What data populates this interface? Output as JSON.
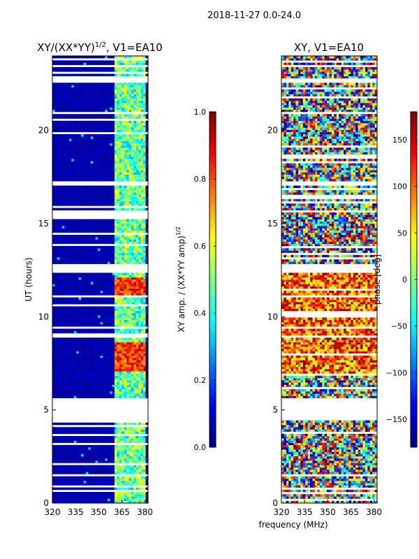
{
  "suptitle": "2018-11-27 0.0-24.0",
  "shared_xlabel": "frequency (MHz)",
  "colors": {
    "jet": [
      "#00007f",
      "#0000ff",
      "#007fff",
      "#00ffff",
      "#7fff7f",
      "#ffff00",
      "#ff7f00",
      "#ff0000",
      "#7f0000"
    ]
  },
  "chart_data": [
    {
      "type": "heatmap",
      "title": "XY/(XX*YY)^{1/2}, V1=EA10",
      "title_main": "XY/(XX*YY)",
      "title_exp": "1/2",
      "title_tail": ", V1=EA10",
      "xlabel": "frequency (MHz)",
      "ylabel": "UT (hours)",
      "xlim": [
        320,
        382
      ],
      "ylim": [
        0,
        24
      ],
      "xticks": [
        "320",
        "335",
        "350",
        "365",
        "380"
      ],
      "xtick_values": [
        320,
        335,
        350,
        365,
        380
      ],
      "yticks": [
        "0",
        "5",
        "10",
        "15",
        "20"
      ],
      "ytick_values": [
        0,
        5,
        10,
        15,
        20
      ],
      "colorbar": {
        "label": "XY amp. / (XX*YY amp)^{1/2}",
        "label_main": "XY amp. / (XX*YY amp)",
        "label_exp": "1/2",
        "range": [
          0.0,
          1.0
        ],
        "ticks": [
          "0.0",
          "0.2",
          "0.4",
          "0.6",
          "0.8",
          "1.0"
        ],
        "tick_values": [
          0.0,
          0.2,
          0.4,
          0.6,
          0.8,
          1.0
        ]
      },
      "description": "amplitude near 0 (dark blue) below ~360 MHz; elevated 0.3-0.9 in 360-380 MHz band; peaks ~0.9 near UT 7-8.5 and 11-12",
      "blank_ut_intervals": [
        [
          4.4,
          5.6
        ],
        [
          12.3,
          12.8
        ],
        [
          8.8,
          9.0
        ],
        [
          22.5,
          22.8
        ],
        [
          17.0,
          17.2
        ]
      ]
    },
    {
      "type": "heatmap",
      "title": "XY, V1=EA10",
      "xlabel": "frequency (MHz)",
      "ylabel": "",
      "xlim": [
        320,
        382
      ],
      "ylim": [
        0,
        24
      ],
      "xticks": [
        "320",
        "335",
        "350",
        "365",
        "380"
      ],
      "xtick_values": [
        320,
        335,
        350,
        365,
        380
      ],
      "yticks": [
        "0",
        "5",
        "10",
        "15",
        "20"
      ],
      "ytick_values": [
        0,
        5,
        10,
        15,
        20
      ],
      "colorbar": {
        "label": "phase [deg]",
        "range": [
          -180,
          180
        ],
        "ticks": [
          "−150",
          "−100",
          "−50",
          "0",
          "50",
          "100",
          "150"
        ],
        "tick_values": [
          -150,
          -100,
          -50,
          0,
          50,
          100,
          150
        ]
      },
      "description": "phase varies broadly across -180 to 180 degrees; mostly positive (orange/red) in UT 7-12, mixed elsewhere",
      "blank_ut_intervals": [
        [
          4.4,
          5.6
        ],
        [
          12.3,
          12.8
        ],
        [
          8.8,
          9.0
        ],
        [
          22.5,
          22.8
        ],
        [
          17.0,
          17.2
        ]
      ]
    }
  ]
}
